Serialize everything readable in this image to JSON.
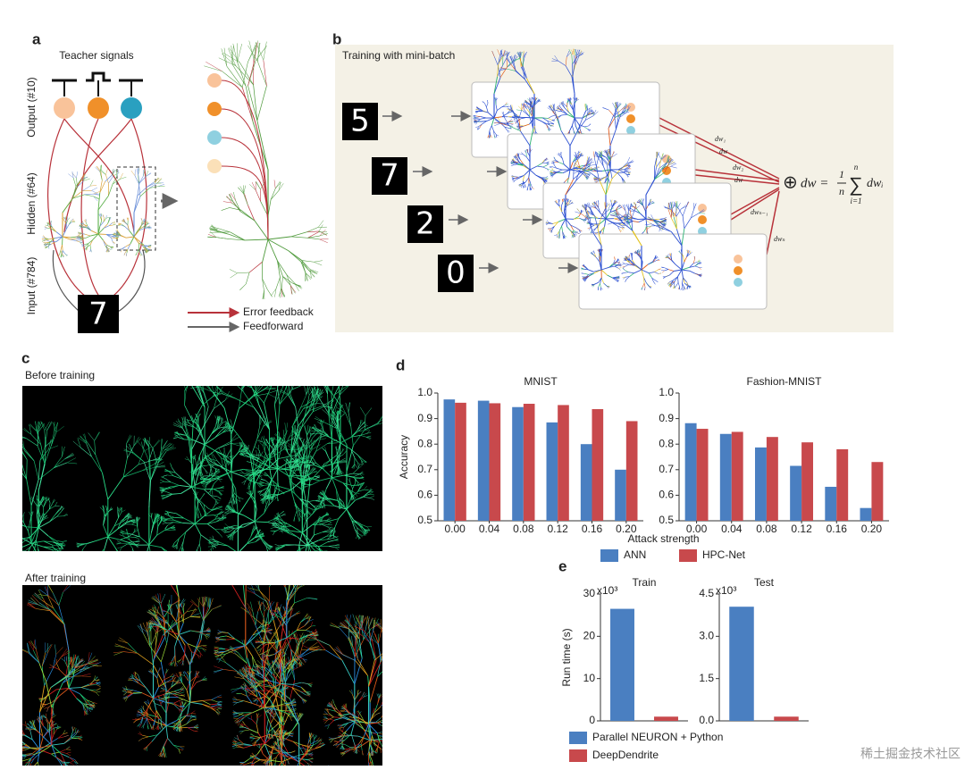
{
  "panel_a": {
    "letter": "a",
    "teacher": "Teacher signals",
    "layers": [
      "Output (#10)",
      "Hidden (#64)",
      "Input (#784)"
    ],
    "digit": "7",
    "legend": [
      "Error feedback",
      "Feedforward"
    ]
  },
  "panel_b": {
    "letter": "b",
    "title": "Training with mini-batch",
    "digits": [
      "5",
      "7",
      "2",
      "0"
    ],
    "weights": [
      "dw₁",
      "dw",
      "dw₂",
      "dw",
      "dwₙ₋₁",
      "dwₙ"
    ],
    "formula": {
      "oplus": "⊕",
      "lhs": "dw =",
      "num": "1",
      "den": "n",
      "sum": "∑",
      "top": "n",
      "bottom": "i=1",
      "term": "dwᵢ"
    }
  },
  "panel_c": {
    "letter": "c",
    "before": "Before training",
    "after": "After training"
  },
  "chart_data": [
    {
      "type": "bar",
      "letter": "d",
      "ylabel": "Accuracy",
      "xlabel": "Attack strength",
      "categories": [
        "0.00",
        "0.04",
        "0.08",
        "0.12",
        "0.16",
        "0.20"
      ],
      "ylim": [
        0.5,
        1
      ],
      "yticks": [
        0.5,
        0.6,
        0.7,
        0.8,
        0.9,
        {
          "value": 1,
          "label": "1.0"
        }
      ],
      "series": [
        {
          "name": "ANN",
          "color": "#4a7fc1"
        },
        {
          "name": "HPC-Net",
          "color": "#c8494c"
        }
      ],
      "subplots": [
        {
          "title": "MNIST",
          "values": [
            [
              0.975,
              0.97,
              0.945,
              0.885,
              0.8,
              0.7
            ],
            [
              0.962,
              0.96,
              0.958,
              0.953,
              0.937,
              0.89
            ]
          ]
        },
        {
          "title": "Fashion-MNIST",
          "values": [
            [
              0.882,
              0.84,
              0.787,
              0.715,
              0.633,
              0.55
            ],
            [
              0.86,
              0.848,
              0.828,
              0.807,
              0.78,
              0.73
            ]
          ]
        }
      ]
    },
    {
      "type": "bar",
      "letter": "e",
      "ylabel": "Run time (s)",
      "series": [
        {
          "name": "Parallel NEURON + Python",
          "color": "#4a7fc1"
        },
        {
          "name": "DeepDendrite",
          "color": "#c8494c"
        }
      ],
      "subplots": [
        {
          "title": "Train",
          "scale_label": "x10³",
          "ylim": [
            0,
            30
          ],
          "yticks": [
            0,
            10,
            20,
            30
          ],
          "values": [
            26.5,
            1.0
          ]
        },
        {
          "title": "Test",
          "scale_label": "x10³",
          "ylim": [
            0,
            4.5
          ],
          "yticks": [
            {
              "value": 0,
              "label": "0.0"
            },
            1.5,
            {
              "value": 3,
              "label": "3.0"
            },
            4.5
          ],
          "values": [
            4.05,
            0.15
          ]
        }
      ]
    }
  ],
  "watermark": "稀土掘金技术社区"
}
